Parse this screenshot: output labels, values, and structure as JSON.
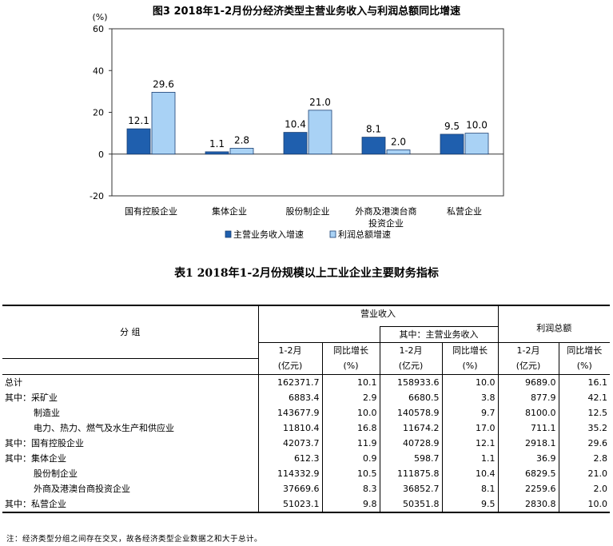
{
  "chart_data": {
    "type": "bar",
    "title": "图3 2018年1-2月份分经济类型主营业务收入与利润总额同比增速",
    "unit_label": "(%)",
    "ylim": [
      -20,
      60
    ],
    "yticks": [
      "60",
      "40",
      "20",
      "0",
      "-20"
    ],
    "categories": [
      "国有控股企业",
      "集体企业",
      "股份制企业",
      "外商及港澳台商",
      "私营企业"
    ],
    "category_sublabels": [
      "",
      "",
      "",
      "投资企业",
      ""
    ],
    "series": [
      {
        "name": "主营业务收入增速",
        "values": [
          12.1,
          1.1,
          10.4,
          8.1,
          9.5
        ],
        "labels": [
          "12.1",
          "1.1",
          "10.4",
          "8.1",
          "9.5"
        ],
        "color": "#1f5fae"
      },
      {
        "name": "利润总额增速",
        "values": [
          29.6,
          2.8,
          21.0,
          2.0,
          10.0
        ],
        "labels": [
          "29.6",
          "2.8",
          "21.0",
          "2.0",
          "10.0"
        ],
        "color": "#a9d2f5"
      }
    ],
    "legend_position": "bottom",
    "grid": false
  },
  "table": {
    "title": "表1 2018年1-2月份规模以上工业企业主要财务指标",
    "header": {
      "group": "分 组",
      "revenue": "营业收入",
      "main_revenue": "其中：主营业务收入",
      "profit": "利润总额",
      "period": "1-2月",
      "unit_yuan": "(亿元)",
      "growth": "同比增长",
      "unit_pct": "(%)"
    },
    "rows": [
      {
        "label": "总计",
        "v1": "162371.7",
        "v2": "10.1",
        "v3": "158933.6",
        "v4": "10.0",
        "v5": "9689.0",
        "v6": "16.1"
      },
      {
        "label": "其中：采矿业",
        "v1": "6883.4",
        "v2": "2.9",
        "v3": "6680.5",
        "v4": "3.8",
        "v5": "877.9",
        "v6": "42.1"
      },
      {
        "label": "制造业",
        "v1": "143677.9",
        "v2": "10.0",
        "v3": "140578.9",
        "v4": "9.7",
        "v5": "8100.0",
        "v6": "12.5"
      },
      {
        "label": "电力、热力、燃气及水生产和供应业",
        "v1": "11810.4",
        "v2": "16.8",
        "v3": "11674.2",
        "v4": "17.0",
        "v5": "711.1",
        "v6": "35.2"
      },
      {
        "label": "其中：国有控股企业",
        "v1": "42073.7",
        "v2": "11.9",
        "v3": "40728.9",
        "v4": "12.1",
        "v5": "2918.1",
        "v6": "29.6"
      },
      {
        "label": "其中：集体企业",
        "v1": "612.3",
        "v2": "0.9",
        "v3": "598.7",
        "v4": "1.1",
        "v5": "36.9",
        "v6": "2.8"
      },
      {
        "label": "股份制企业",
        "v1": "114332.9",
        "v2": "10.5",
        "v3": "111875.8",
        "v4": "10.4",
        "v5": "6829.5",
        "v6": "21.0"
      },
      {
        "label": "外商及港澳台商投资企业",
        "v1": "37669.6",
        "v2": "8.3",
        "v3": "36852.7",
        "v4": "8.1",
        "v5": "2259.6",
        "v6": "2.0"
      },
      {
        "label": "其中：私营企业",
        "v1": "51023.1",
        "v2": "9.8",
        "v3": "50351.8",
        "v4": "9.5",
        "v5": "2830.8",
        "v6": "10.0"
      }
    ],
    "footnote": "注：经济类型分组之间存在交叉，故各经济类型企业数据之和大于总计。"
  }
}
